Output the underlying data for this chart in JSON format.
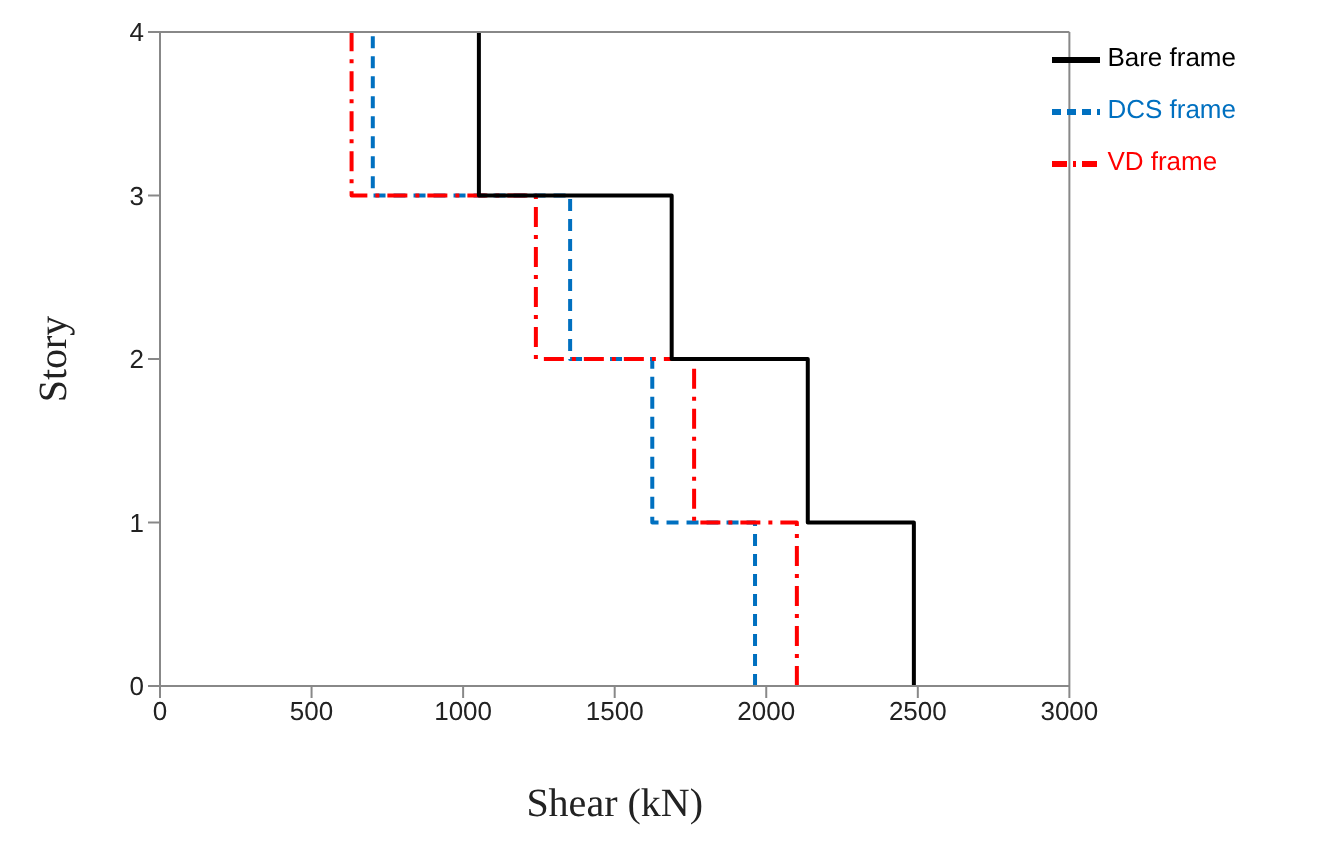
{
  "chart_data": {
    "type": "line",
    "xlabel": "Shear (kN)",
    "ylabel": "Story",
    "xlim": [
      0,
      3000
    ],
    "xticks": [
      0,
      500,
      1000,
      1500,
      2000,
      2500,
      3000
    ],
    "ylim": [
      0,
      4
    ],
    "yticks": [
      0,
      1,
      2,
      3,
      4
    ],
    "grid": false,
    "legend": "top right",
    "marker": "none",
    "series": [
      {
        "name": "DCS frame",
        "color": "#0070c0",
        "line_style": "dashed",
        "x": [
          1963,
          1963,
          1624,
          1624,
          1353,
          1353,
          702,
          702
        ],
        "values": [
          0,
          1,
          1,
          2,
          2,
          3,
          3,
          4
        ]
      },
      {
        "name": "VD frame",
        "color": "#ff0000",
        "line_style": "dashdot",
        "x": [
          2101,
          2101,
          1762,
          1762,
          1240,
          1240,
          632,
          632
        ],
        "values": [
          0,
          1,
          1,
          2,
          2,
          3,
          3,
          4
        ]
      },
      {
        "name": "Bare frame",
        "color": "#000000",
        "line_style": "solid",
        "x": [
          2487,
          2487,
          2137,
          2137,
          1688,
          1688,
          1052,
          1052
        ],
        "values": [
          0,
          1,
          1,
          2,
          2,
          3,
          3,
          4
        ]
      }
    ]
  }
}
